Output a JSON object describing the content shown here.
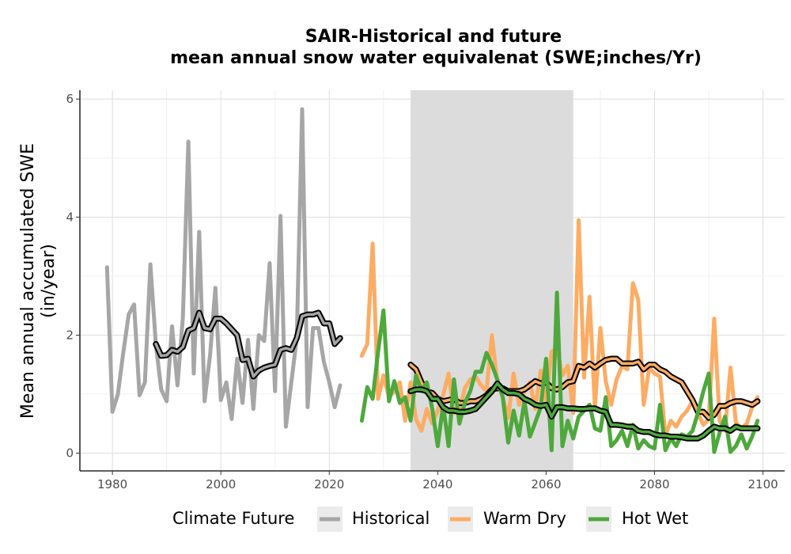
{
  "chart_data": {
    "type": "line",
    "title_lines": [
      "SAIR-Historical and future",
      "mean annual snow water equivalenat (SWE;inches/Yr)"
    ],
    "xlabel": "",
    "ylabel_lines": [
      "Mean annual accumulated SWE",
      "(in/year)"
    ],
    "xlim": [
      1974,
      2104
    ],
    "ylim": [
      -0.3,
      6.15
    ],
    "x_ticks": [
      1980,
      2000,
      2020,
      2040,
      2060,
      2080,
      2100
    ],
    "y_ticks": [
      0,
      2,
      4,
      6
    ],
    "grid": true,
    "shaded_period": [
      2035,
      2065
    ],
    "shaded_color": "#dcdcdc",
    "legend": {
      "title": "Climate Future",
      "position": "bottom",
      "entries": [
        "Historical",
        "Warm Dry",
        "Hot Wet"
      ]
    },
    "series": [
      {
        "name": "Historical",
        "color": "#a6a6a6",
        "x": [
          1979,
          1980,
          1981,
          1982,
          1983,
          1984,
          1985,
          1986,
          1987,
          1988,
          1989,
          1990,
          1991,
          1992,
          1993,
          1994,
          1995,
          1996,
          1997,
          1998,
          1999,
          2000,
          2001,
          2002,
          2003,
          2004,
          2005,
          2006,
          2007,
          2008,
          2009,
          2010,
          2011,
          2012,
          2013,
          2014,
          2015,
          2016,
          2017,
          2018,
          2019,
          2020,
          2021,
          2022
        ],
        "y": [
          3.15,
          0.7,
          1.0,
          1.7,
          2.35,
          2.52,
          0.98,
          1.2,
          3.2,
          1.85,
          1.08,
          0.88,
          2.15,
          1.15,
          2.3,
          5.28,
          1.35,
          3.75,
          0.88,
          1.65,
          2.8,
          0.9,
          1.2,
          0.58,
          1.6,
          0.85,
          1.92,
          0.75,
          2.0,
          1.9,
          3.22,
          1.05,
          4.02,
          0.45,
          1.2,
          1.95,
          5.83,
          0.78,
          2.12,
          2.12,
          1.55,
          1.2,
          0.78,
          1.15
        ]
      },
      {
        "name": "Historical moving average",
        "color": "#a6a6a6",
        "outline": "#000000",
        "x": [
          1988,
          1989,
          1990,
          1991,
          1992,
          1993,
          1994,
          1995,
          1996,
          1997,
          1998,
          1999,
          2000,
          2001,
          2002,
          2003,
          2004,
          2005,
          2006,
          2007,
          2008,
          2009,
          2010,
          2011,
          2012,
          2013,
          2014,
          2015,
          2016,
          2017,
          2018,
          2019,
          2020,
          2021,
          2022
        ],
        "y": [
          1.85,
          1.65,
          1.66,
          1.75,
          1.72,
          1.8,
          2.08,
          2.12,
          2.38,
          2.12,
          2.1,
          2.28,
          2.28,
          2.2,
          2.1,
          2.0,
          1.58,
          1.6,
          1.3,
          1.4,
          1.45,
          1.48,
          1.5,
          1.75,
          1.78,
          1.75,
          1.95,
          2.32,
          2.35,
          2.35,
          2.38,
          2.2,
          2.2,
          1.85,
          1.95
        ]
      },
      {
        "name": "Warm Dry",
        "color": "#fdac63",
        "x": [
          2026,
          2027,
          2028,
          2029,
          2030,
          2031,
          2032,
          2033,
          2034,
          2035,
          2036,
          2037,
          2038,
          2039,
          2040,
          2041,
          2042,
          2043,
          2044,
          2045,
          2046,
          2047,
          2048,
          2049,
          2050,
          2051,
          2052,
          2053,
          2054,
          2055,
          2056,
          2057,
          2058,
          2059,
          2060,
          2061,
          2062,
          2063,
          2064,
          2065,
          2066,
          2067,
          2068,
          2069,
          2070,
          2071,
          2072,
          2073,
          2074,
          2075,
          2076,
          2077,
          2078,
          2079,
          2080,
          2081,
          2082,
          2083,
          2084,
          2085,
          2086,
          2087,
          2088,
          2089,
          2090,
          2091,
          2092,
          2093,
          2094,
          2095,
          2096,
          2097,
          2098,
          2099
        ],
        "y": [
          1.65,
          1.85,
          3.55,
          0.92,
          1.32,
          0.95,
          1.05,
          1.2,
          0.55,
          1.2,
          0.58,
          0.38,
          0.75,
          0.5,
          0.72,
          0.98,
          1.35,
          0.68,
          0.72,
          1.1,
          1.25,
          1.3,
          1.15,
          1.05,
          2.0,
          1.2,
          0.95,
          0.6,
          1.35,
          0.82,
          1.05,
          1.2,
          0.75,
          1.4,
          0.88,
          1.72,
          1.78,
          1.32,
          1.48,
          0.68,
          3.95,
          1.28,
          2.65,
          0.78,
          2.12,
          1.22,
          0.82,
          1.25,
          1.48,
          1.42,
          2.88,
          2.6,
          0.82,
          1.45,
          1.35,
          1.3,
          0.3,
          0.55,
          0.45,
          0.62,
          0.72,
          0.88,
          0.68,
          0.48,
          0.58,
          2.28,
          0.55,
          0.38,
          1.45,
          0.52,
          0.42,
          0.5,
          0.78,
          0.95
        ]
      },
      {
        "name": "Warm Dry moving average",
        "color": "#fdac63",
        "outline": "#000000",
        "x": [
          2035,
          2036,
          2037,
          2038,
          2039,
          2040,
          2041,
          2042,
          2043,
          2044,
          2045,
          2046,
          2047,
          2048,
          2049,
          2050,
          2051,
          2052,
          2053,
          2054,
          2055,
          2056,
          2057,
          2058,
          2059,
          2060,
          2061,
          2062,
          2063,
          2064,
          2065,
          2066,
          2067,
          2068,
          2069,
          2070,
          2071,
          2072,
          2073,
          2074,
          2075,
          2076,
          2077,
          2078,
          2079,
          2080,
          2081,
          2082,
          2083,
          2084,
          2085,
          2086,
          2087,
          2088,
          2089,
          2090,
          2091,
          2092,
          2093,
          2094,
          2095,
          2096,
          2097,
          2098,
          2099
        ],
        "y": [
          1.5,
          1.42,
          1.2,
          1.05,
          1.02,
          0.92,
          0.88,
          0.9,
          0.92,
          0.85,
          0.85,
          0.88,
          0.88,
          0.92,
          0.98,
          1.08,
          1.1,
          1.1,
          1.05,
          1.05,
          1.05,
          1.08,
          1.15,
          1.22,
          1.18,
          1.2,
          1.1,
          1.08,
          1.12,
          1.2,
          1.22,
          1.48,
          1.45,
          1.52,
          1.45,
          1.52,
          1.58,
          1.6,
          1.6,
          1.52,
          1.52,
          1.52,
          1.55,
          1.42,
          1.5,
          1.5,
          1.42,
          1.38,
          1.3,
          1.25,
          1.2,
          1.05,
          0.9,
          0.7,
          0.7,
          0.6,
          0.65,
          0.8,
          0.8,
          0.85,
          0.88,
          0.88,
          0.85,
          0.82,
          0.88
        ]
      },
      {
        "name": "Hot Wet",
        "color": "#4ea83c",
        "x": [
          2026,
          2027,
          2028,
          2029,
          2030,
          2031,
          2032,
          2033,
          2034,
          2035,
          2036,
          2037,
          2038,
          2039,
          2040,
          2041,
          2042,
          2043,
          2044,
          2045,
          2046,
          2047,
          2048,
          2049,
          2050,
          2051,
          2052,
          2053,
          2054,
          2055,
          2056,
          2057,
          2058,
          2059,
          2060,
          2061,
          2062,
          2063,
          2064,
          2065,
          2066,
          2067,
          2068,
          2069,
          2070,
          2071,
          2072,
          2073,
          2074,
          2075,
          2076,
          2077,
          2078,
          2079,
          2080,
          2081,
          2082,
          2083,
          2084,
          2085,
          2086,
          2087,
          2088,
          2089,
          2090,
          2091,
          2092,
          2093,
          2094,
          2095,
          2096,
          2097,
          2098,
          2099
        ],
        "y": [
          0.55,
          1.12,
          0.92,
          1.72,
          2.42,
          0.88,
          1.22,
          0.85,
          0.95,
          0.55,
          1.32,
          1.05,
          1.2,
          0.75,
          0.12,
          0.82,
          0.12,
          1.25,
          0.5,
          0.85,
          1.05,
          1.38,
          1.38,
          1.7,
          1.5,
          1.25,
          0.95,
          0.18,
          0.72,
          0.3,
          0.88,
          0.28,
          0.52,
          0.78,
          1.6,
          0.05,
          2.72,
          0.12,
          0.55,
          0.25,
          0.62,
          0.72,
          0.82,
          0.42,
          0.38,
          0.95,
          0.12,
          0.22,
          0.38,
          0.12,
          0.48,
          0.08,
          0.22,
          0.12,
          0.08,
          0.82,
          0.05,
          0.25,
          0.12,
          0.32,
          0.28,
          0.38,
          0.68,
          1.05,
          1.35,
          0.02,
          0.35,
          0.62,
          0.02,
          0.12,
          0.32,
          0.08,
          0.28,
          0.55
        ]
      },
      {
        "name": "Hot Wet moving average",
        "color": "#4ea83c",
        "outline": "#000000",
        "x": [
          2035,
          2036,
          2037,
          2038,
          2039,
          2040,
          2041,
          2042,
          2043,
          2044,
          2045,
          2046,
          2047,
          2048,
          2049,
          2050,
          2051,
          2052,
          2053,
          2054,
          2055,
          2056,
          2057,
          2058,
          2059,
          2060,
          2061,
          2062,
          2063,
          2064,
          2065,
          2066,
          2067,
          2068,
          2069,
          2070,
          2071,
          2072,
          2073,
          2074,
          2075,
          2076,
          2077,
          2078,
          2079,
          2080,
          2081,
          2082,
          2083,
          2084,
          2085,
          2086,
          2087,
          2088,
          2089,
          2090,
          2091,
          2092,
          2093,
          2094,
          2095,
          2096,
          2097,
          2098,
          2099
        ],
        "y": [
          1.05,
          1.08,
          1.08,
          1.05,
          0.92,
          0.92,
          0.78,
          0.72,
          0.72,
          0.7,
          0.7,
          0.72,
          0.75,
          0.85,
          0.95,
          1.05,
          1.18,
          1.08,
          1.02,
          1.02,
          1.0,
          0.92,
          0.88,
          0.82,
          0.8,
          0.82,
          0.62,
          0.78,
          0.78,
          0.76,
          0.76,
          0.75,
          0.75,
          0.76,
          0.76,
          0.72,
          0.7,
          0.48,
          0.48,
          0.47,
          0.45,
          0.45,
          0.38,
          0.36,
          0.36,
          0.32,
          0.3,
          0.3,
          0.28,
          0.28,
          0.27,
          0.25,
          0.25,
          0.25,
          0.3,
          0.38,
          0.45,
          0.42,
          0.42,
          0.38,
          0.45,
          0.42,
          0.42,
          0.42,
          0.42
        ]
      }
    ]
  }
}
